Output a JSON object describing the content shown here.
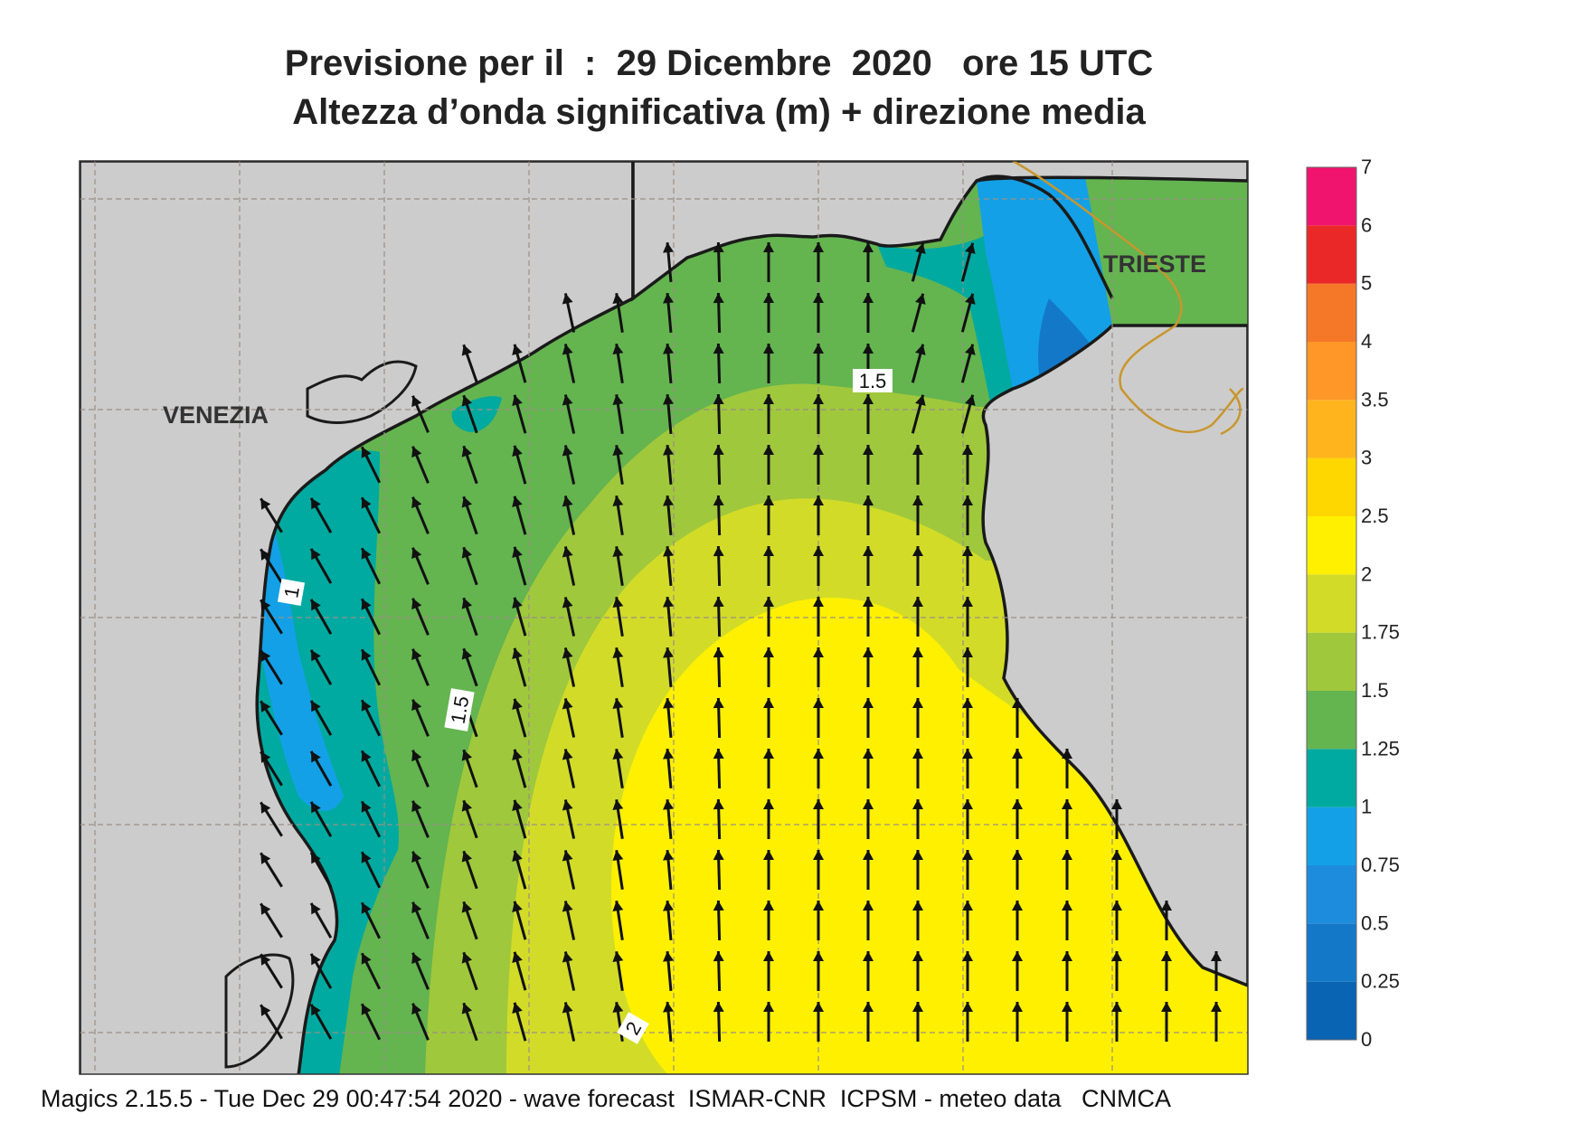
{
  "title": "Previsione per il  :  29 Dicembre  2020   ore 15 UTC",
  "subtitle": "Altezza d’onda significativa (m) + direzione media",
  "footer": "Magics 2.15.5 - Tue Dec 29 00:47:54 2020 - wave forecast  ISMAR-CNR  ICPSM - meteo data   CNMCA",
  "cities": [
    "VENEZIA",
    "TRIESTE"
  ],
  "contour_labels": [
    "1",
    "1.5",
    "1.5",
    "2"
  ],
  "legend": {
    "ticks": [
      "0",
      "0.25",
      "0.5",
      "0.75",
      "1",
      "1.25",
      "1.5",
      "1.75",
      "2",
      "2.5",
      "3",
      "3.5",
      "4",
      "5",
      "6",
      "7"
    ],
    "colors": [
      "#0a64b4",
      "#1478c8",
      "#1e8cdc",
      "#14a0e6",
      "#00aaa0",
      "#64b450",
      "#a0c83c",
      "#d2dc28",
      "#fff000",
      "#ffd700",
      "#ffb41e",
      "#ff9628",
      "#f57828",
      "#eb2828",
      "#f0146e"
    ]
  },
  "colors": {
    "land": "#cccccc",
    "coast": "#1a1a1a",
    "border": "#c8962d",
    "grid": "#9a8f86",
    "arrow": "#111111"
  }
}
